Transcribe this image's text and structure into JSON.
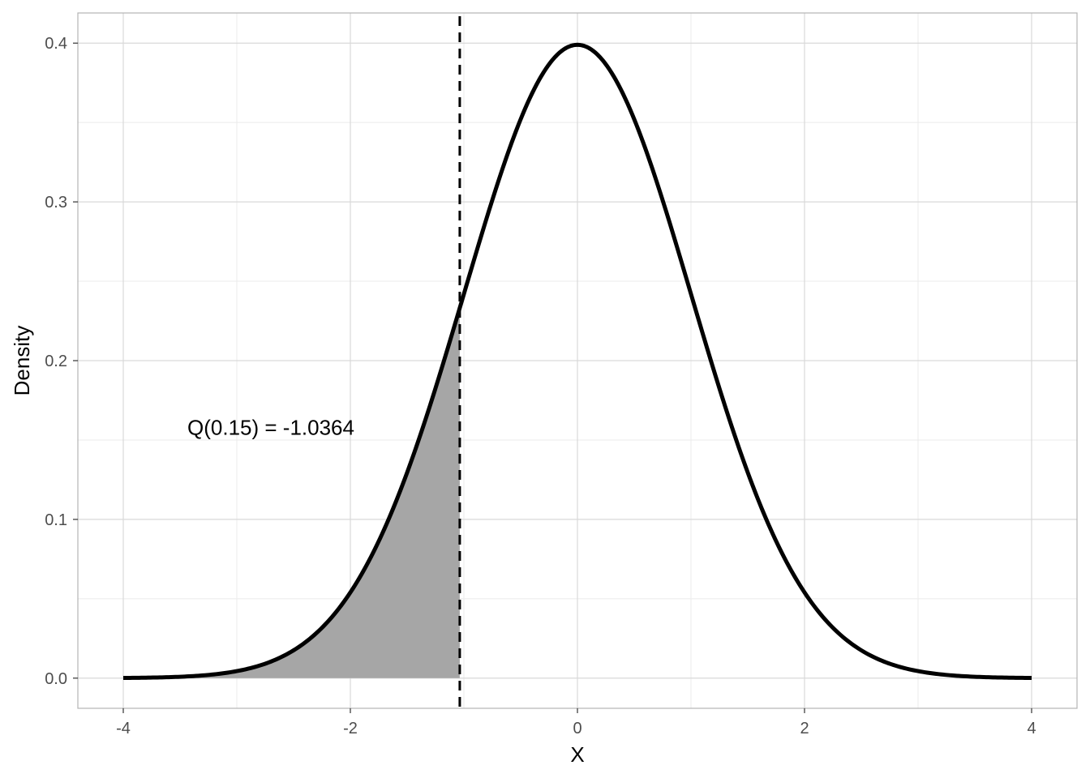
{
  "chart_data": {
    "type": "area",
    "distribution": "normal",
    "mean": 0,
    "sd": 1,
    "x_range": [
      -4,
      4
    ],
    "xlabel": "X",
    "ylabel": "Density",
    "xlim": [
      -4.4,
      4.4
    ],
    "ylim": [
      -0.019,
      0.419
    ],
    "x_ticks": [
      -4,
      -2,
      0,
      2,
      4
    ],
    "x_tick_labels": [
      "-4",
      "-2",
      "0",
      "2",
      "4"
    ],
    "y_ticks": [
      0.0,
      0.1,
      0.2,
      0.3,
      0.4
    ],
    "y_tick_labels": [
      "0.0",
      "0.1",
      "0.2",
      "0.3",
      "0.4"
    ],
    "quantile_prob": 0.15,
    "quantile_value": -1.0364,
    "annotation": {
      "text": "Q(0.15) = -1.0364",
      "x": -2.7,
      "y": 0.158
    },
    "shaded_region": {
      "from": -4,
      "to": -1.0364,
      "color": "#a6a6a6"
    },
    "grid": true,
    "curve_color": "#000000",
    "vline_style": "dashed"
  }
}
